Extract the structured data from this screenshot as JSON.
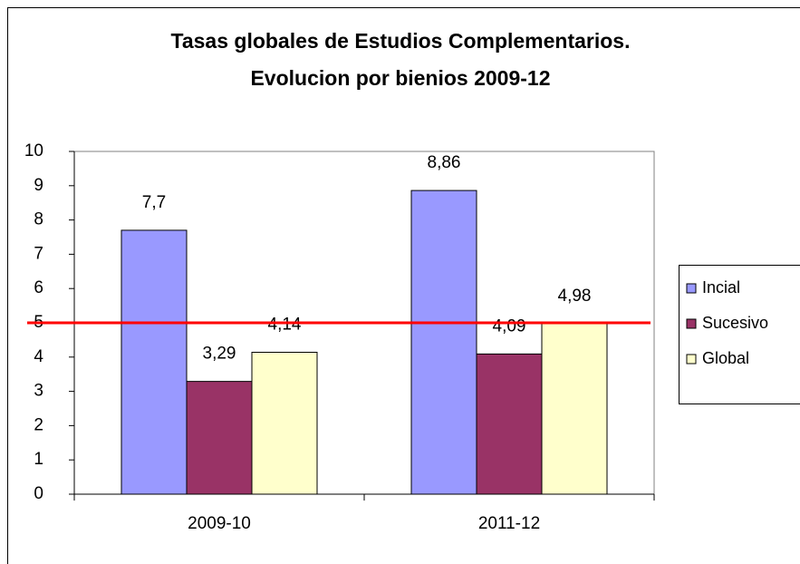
{
  "chart_data": {
    "type": "bar",
    "title": [
      "Tasas globales de Estudios Complementarios.",
      "Evolucion por bienios 2009-12"
    ],
    "categories": [
      "2009-10",
      "2011-12"
    ],
    "series": [
      {
        "name": "Incial",
        "color": "#9999ff",
        "values": [
          7.7,
          8.86
        ],
        "value_labels": [
          "7,7",
          "8,86"
        ]
      },
      {
        "name": "Sucesivo",
        "color": "#993366",
        "values": [
          3.29,
          4.09
        ],
        "value_labels": [
          "3,29",
          "4,09"
        ]
      },
      {
        "name": "Global",
        "color": "#ffffcc",
        "values": [
          4.14,
          4.98
        ],
        "value_labels": [
          "4,14",
          "4,98"
        ]
      }
    ],
    "ylim": [
      0,
      10
    ],
    "yticks": [
      0,
      1,
      2,
      3,
      4,
      5,
      6,
      7,
      8,
      9,
      10
    ],
    "grid": false,
    "legend": "right",
    "reference_line": {
      "value": 5,
      "color": "#ff0000"
    }
  }
}
